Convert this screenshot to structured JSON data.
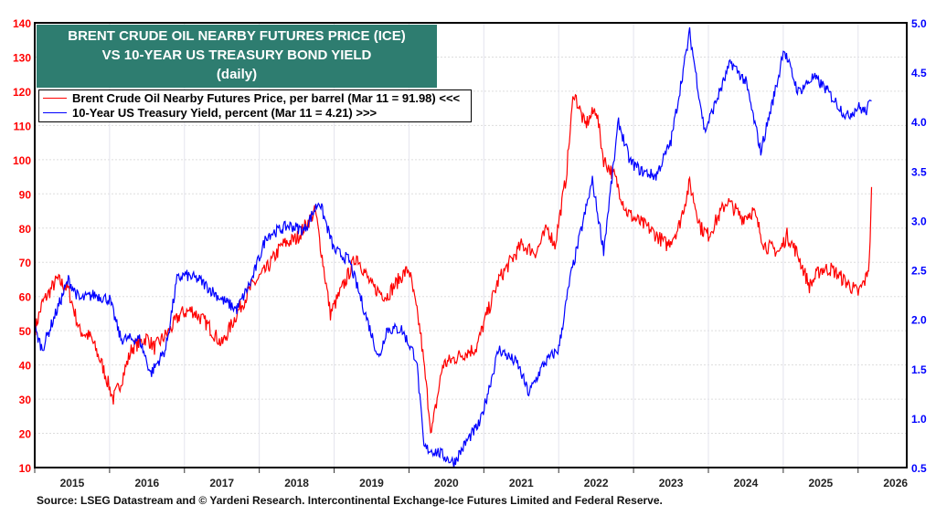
{
  "chart_data": {
    "type": "line",
    "title": [
      "BRENT CRUDE OIL NEARBY FUTURES PRICE (ICE)",
      "VS 10-YEAR US TREASURY BOND YIELD",
      "(daily)"
    ],
    "x_ticks": [
      "2015",
      "2016",
      "2017",
      "2018",
      "2019",
      "2020",
      "2021",
      "2022",
      "2023",
      "2024",
      "2025",
      "2026"
    ],
    "xlim": [
      2015.0,
      2026.65
    ],
    "y_left": {
      "ticks": [
        10,
        20,
        30,
        40,
        50,
        60,
        70,
        80,
        90,
        100,
        110,
        120,
        130,
        140
      ],
      "ylim": [
        10,
        140
      ],
      "color": "#ff0000"
    },
    "y_right": {
      "ticks": [
        "0.5",
        "1.0",
        "1.5",
        "2.0",
        "2.5",
        "3.0",
        "3.5",
        "4.0",
        "4.5",
        "5.0"
      ],
      "ylim": [
        0.5,
        5.0
      ],
      "color": "#0000ff"
    },
    "grid": true,
    "legend_placement": "top-left",
    "series": [
      {
        "name": "Brent Crude Oil Nearby Futures Price, per barrel (Mar 11 = 91.98) <<<",
        "axis": "left",
        "color": "#ff0000",
        "x": [
          2015.0,
          2015.1,
          2015.3,
          2015.45,
          2015.6,
          2015.75,
          2015.9,
          2016.05,
          2016.15,
          2016.3,
          2016.5,
          2016.6,
          2016.8,
          2016.95,
          2017.1,
          2017.3,
          2017.5,
          2017.7,
          2017.9,
          2018.1,
          2018.3,
          2018.5,
          2018.75,
          2018.95,
          2019.1,
          2019.3,
          2019.5,
          2019.7,
          2019.9,
          2020.0,
          2020.15,
          2020.3,
          2020.45,
          2020.7,
          2020.9,
          2021.0,
          2021.2,
          2021.5,
          2021.7,
          2021.85,
          2021.95,
          2022.1,
          2022.2,
          2022.35,
          2022.5,
          2022.6,
          2022.75,
          2022.9,
          2023.0,
          2023.2,
          2023.45,
          2023.6,
          2023.75,
          2023.9,
          2024.0,
          2024.25,
          2024.45,
          2024.6,
          2024.75,
          2024.95,
          2025.05,
          2025.2,
          2025.35,
          2025.5,
          2025.65,
          2025.85,
          2026.0,
          2026.1,
          2026.15,
          2026.18
        ],
        "values": [
          50,
          58,
          65,
          62,
          50,
          48,
          40,
          30,
          35,
          45,
          48,
          45,
          50,
          55,
          56,
          52,
          46,
          55,
          63,
          68,
          75,
          77,
          85,
          55,
          62,
          72,
          63,
          60,
          66,
          68,
          50,
          20,
          40,
          43,
          45,
          52,
          65,
          75,
          73,
          80,
          75,
          95,
          120,
          110,
          115,
          100,
          95,
          85,
          83,
          80,
          75,
          80,
          93,
          80,
          78,
          88,
          83,
          85,
          75,
          73,
          78,
          72,
          63,
          68,
          68,
          64,
          61,
          65,
          70,
          92
        ]
      },
      {
        "name": "10-Year US Treasury Yield, percent (Mar 11 = 4.21) >>>",
        "axis": "right",
        "color": "#0000ff",
        "x": [
          2015.0,
          2015.1,
          2015.3,
          2015.45,
          2015.6,
          2015.8,
          2016.0,
          2016.15,
          2016.4,
          2016.55,
          2016.75,
          2016.9,
          2017.0,
          2017.2,
          2017.5,
          2017.7,
          2017.9,
          2018.1,
          2018.4,
          2018.6,
          2018.8,
          2019.0,
          2019.2,
          2019.4,
          2019.6,
          2019.7,
          2019.9,
          2020.1,
          2020.2,
          2020.4,
          2020.6,
          2020.8,
          2020.95,
          2021.2,
          2021.45,
          2021.6,
          2021.8,
          2022.0,
          2022.15,
          2022.3,
          2022.45,
          2022.6,
          2022.8,
          2022.95,
          2023.1,
          2023.3,
          2023.5,
          2023.75,
          2023.95,
          2024.1,
          2024.3,
          2024.5,
          2024.7,
          2024.95,
          2025.0,
          2025.2,
          2025.4,
          2025.55,
          2025.7,
          2025.85,
          2026.0,
          2026.1,
          2026.18
        ],
        "values": [
          1.9,
          1.7,
          2.1,
          2.4,
          2.2,
          2.25,
          2.2,
          1.8,
          1.8,
          1.45,
          1.7,
          2.4,
          2.45,
          2.4,
          2.2,
          2.1,
          2.4,
          2.85,
          2.95,
          2.9,
          3.2,
          2.7,
          2.6,
          2.1,
          1.6,
          1.9,
          1.9,
          1.6,
          0.7,
          0.65,
          0.55,
          0.8,
          0.95,
          1.7,
          1.55,
          1.25,
          1.55,
          1.7,
          2.4,
          2.9,
          3.4,
          2.7,
          4.0,
          3.6,
          3.5,
          3.45,
          3.8,
          4.9,
          3.9,
          4.2,
          4.6,
          4.4,
          3.7,
          4.5,
          4.75,
          4.3,
          4.45,
          4.35,
          4.2,
          4.05,
          4.15,
          4.1,
          4.21
        ]
      }
    ]
  },
  "legend": {
    "oil": "Brent Crude Oil Nearby Futures Price, per barrel (Mar 11 = 91.98) <<<",
    "yield": "10-Year US Treasury Yield, percent (Mar 11 = 4.21) >>>"
  },
  "source": "Source: LSEG Datastream and © Yardeni Research. Intercontinental Exchange-Ice Futures Limited and Federal Reserve."
}
